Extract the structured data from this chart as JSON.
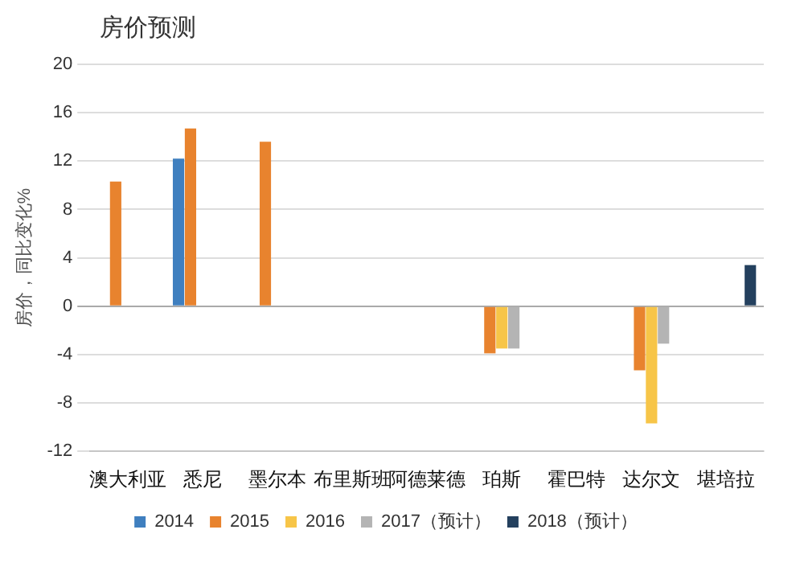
{
  "chart_data": {
    "type": "bar",
    "title": "房价预测",
    "ylabel": "房价，同比变化%",
    "categories": [
      "澳大利亚",
      "悉尼",
      "墨尔本",
      "布里斯班",
      "阿德莱德",
      "珀斯",
      "霍巴特",
      "达尔文",
      "堪培拉"
    ],
    "series": [
      {
        "name": "2014",
        "color": "#3f7fbf",
        "values": [
          null,
          12.2,
          null,
          null,
          null,
          null,
          null,
          null,
          null
        ]
      },
      {
        "name": "2015",
        "color": "#e8832e",
        "values": [
          10.3,
          14.7,
          13.6,
          null,
          null,
          -3.9,
          null,
          -5.3,
          null
        ]
      },
      {
        "name": "2016",
        "color": "#f7c548",
        "values": [
          null,
          null,
          null,
          null,
          null,
          -3.5,
          null,
          -9.7,
          null
        ]
      },
      {
        "name": "2017（预计）",
        "color": "#b4b4b4",
        "values": [
          null,
          null,
          null,
          null,
          null,
          -3.5,
          null,
          -3.1,
          null
        ]
      },
      {
        "name": "2018（预计）",
        "color": "#24405e",
        "values": [
          null,
          null,
          null,
          null,
          null,
          null,
          null,
          null,
          3.4
        ]
      }
    ],
    "ylim": [
      -12,
      20
    ],
    "yticks": [
      -12,
      -8,
      -4,
      0,
      4,
      8,
      12,
      16,
      20
    ],
    "grid": "y",
    "legend": "bottom"
  }
}
